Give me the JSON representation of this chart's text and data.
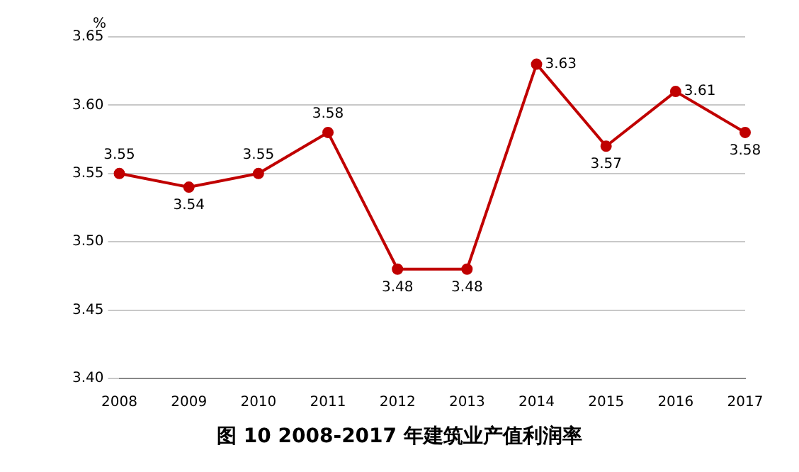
{
  "chart_data": {
    "type": "line",
    "title": "图 10   2008-2017 年建筑业产值利润率",
    "ylabel": "%",
    "categories": [
      "2008",
      "2009",
      "2010",
      "2011",
      "2012",
      "2013",
      "2014",
      "2015",
      "2016",
      "2017"
    ],
    "series": [
      {
        "color": "#c00000",
        "values": [
          3.55,
          3.54,
          3.55,
          3.58,
          3.48,
          3.48,
          3.63,
          3.57,
          3.61,
          3.58
        ]
      }
    ],
    "ylim": [
      3.4,
      3.65
    ],
    "yticks": [
      {
        "value": 3.4,
        "label": "3.40"
      },
      {
        "value": 3.45,
        "label": "3.45"
      },
      {
        "value": 3.5,
        "label": "3.50"
      },
      {
        "value": 3.55,
        "label": "3.55"
      },
      {
        "value": 3.6,
        "label": "3.60"
      },
      {
        "value": 3.65,
        "label": "3.65"
      }
    ],
    "grid": "y",
    "marker": "circle",
    "line_style": "solid",
    "data_labels": true,
    "legend": false
  }
}
